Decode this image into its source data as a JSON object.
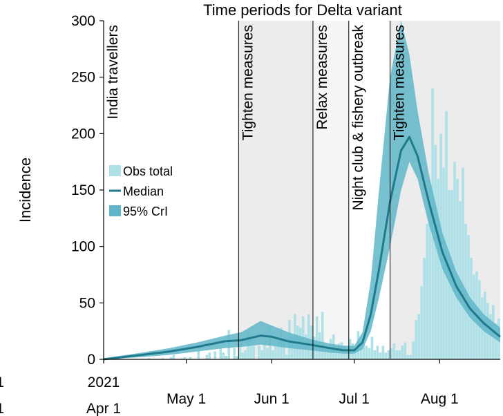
{
  "chart_data": {
    "type": "bar",
    "title": "Time periods for Delta variant",
    "xlabel": "",
    "ylabel": "Incidence",
    "ylim": [
      0,
      300
    ],
    "yticks": [
      "0",
      "50",
      "100",
      "150",
      "200",
      "250",
      "300"
    ],
    "x_tick_labels": [
      {
        "date": "2021-04-01",
        "lines": [
          "2021",
          "Apr 1"
        ]
      },
      {
        "date": "2021-05-01",
        "lines": [
          "May 1"
        ]
      },
      {
        "date": "2021-06-01",
        "lines": [
          "Jun 1"
        ]
      },
      {
        "date": "2021-07-01",
        "lines": [
          "Jul 1"
        ]
      },
      {
        "date": "2021-08-01",
        "lines": [
          "Aug 1"
        ]
      }
    ],
    "left_cutoff_labels": [
      "1",
      "1"
    ],
    "xlim": [
      "2021-04-01",
      "2021-08-23"
    ],
    "periods": [
      {
        "label": "India travellers",
        "start": "2021-04-01",
        "end": "2021-05-20",
        "shade": "#ffffff"
      },
      {
        "label": "Tighten measures",
        "start": "2021-05-20",
        "end": "2021-06-16",
        "shade": "#ececec"
      },
      {
        "label": "Relax measures",
        "start": "2021-06-16",
        "end": "2021-06-29",
        "shade": "#f5f5f5"
      },
      {
        "label": "Night club & fishery outbreak",
        "start": "2021-06-29",
        "end": "2021-07-14",
        "shade": "#ffffff"
      },
      {
        "label": "Tighten measures",
        "start": "2021-07-14",
        "end": "2021-08-23",
        "shade": "#ececec"
      }
    ],
    "legend": {
      "placement": "left-middle",
      "entries": [
        {
          "label": "Obs total",
          "style": "bar",
          "color": "#aee0e7"
        },
        {
          "label": "Median",
          "style": "line",
          "color": "#1f7a8c"
        },
        {
          "label": "95% CrI",
          "style": "band",
          "color": "#5fb6c8"
        }
      ]
    },
    "colors": {
      "bars": "#aee0e7",
      "median": "#1f7a8c",
      "band": "#5fb6c8"
    },
    "series": [
      {
        "name": "Obs total",
        "kind": "daily_bars",
        "start_date": "2021-04-01",
        "values": [
          0,
          0,
          0,
          0,
          0,
          1,
          0,
          0,
          0,
          0,
          0,
          0,
          0,
          0,
          0,
          0,
          1,
          0,
          0,
          0,
          0,
          1,
          0,
          0,
          2,
          4,
          0,
          0,
          1,
          2,
          0,
          2,
          0,
          0,
          8,
          0,
          0,
          4,
          6,
          0,
          7,
          0,
          10,
          6,
          3,
          26,
          0,
          10,
          3,
          14,
          6,
          8,
          25,
          18,
          12,
          0,
          12,
          8,
          16,
          10,
          28,
          8,
          12,
          20,
          28,
          18,
          4,
          35,
          20,
          40,
          30,
          28,
          38,
          22,
          40,
          30,
          20,
          38,
          24,
          42,
          12,
          10,
          18,
          22,
          8,
          14,
          15,
          12,
          8,
          18,
          14,
          10,
          25,
          10,
          14,
          12,
          10,
          20,
          8,
          12,
          6,
          12,
          6,
          8,
          10,
          14,
          8,
          8,
          12,
          15,
          4,
          4,
          16,
          35,
          40,
          65,
          90,
          120,
          155,
          240,
          190,
          160,
          200,
          170,
          220,
          150,
          150,
          175,
          160,
          140,
          170,
          120,
          110,
          90,
          75,
          78,
          70,
          55,
          60,
          50,
          40,
          48,
          32,
          36,
          20
        ]
      },
      {
        "name": "Median",
        "kind": "line",
        "points": [
          {
            "date": "2021-04-01",
            "value": 0
          },
          {
            "date": "2021-04-15",
            "value": 4
          },
          {
            "date": "2021-04-25",
            "value": 7
          },
          {
            "date": "2021-05-05",
            "value": 11
          },
          {
            "date": "2021-05-15",
            "value": 16
          },
          {
            "date": "2021-05-21",
            "value": 17
          },
          {
            "date": "2021-05-28",
            "value": 21
          },
          {
            "date": "2021-06-01",
            "value": 20
          },
          {
            "date": "2021-06-07",
            "value": 16
          },
          {
            "date": "2021-06-15",
            "value": 13
          },
          {
            "date": "2021-06-22",
            "value": 10
          },
          {
            "date": "2021-06-27",
            "value": 8
          },
          {
            "date": "2021-07-01",
            "value": 8
          },
          {
            "date": "2021-07-04",
            "value": 15
          },
          {
            "date": "2021-07-07",
            "value": 40
          },
          {
            "date": "2021-07-10",
            "value": 80
          },
          {
            "date": "2021-07-14",
            "value": 140
          },
          {
            "date": "2021-07-18",
            "value": 185
          },
          {
            "date": "2021-07-21",
            "value": 197
          },
          {
            "date": "2021-07-24",
            "value": 180
          },
          {
            "date": "2021-07-28",
            "value": 140
          },
          {
            "date": "2021-08-02",
            "value": 95
          },
          {
            "date": "2021-08-07",
            "value": 65
          },
          {
            "date": "2021-08-12",
            "value": 45
          },
          {
            "date": "2021-08-17",
            "value": 32
          },
          {
            "date": "2021-08-23",
            "value": 20
          }
        ]
      },
      {
        "name": "95% CrI",
        "kind": "band",
        "points": [
          {
            "date": "2021-04-01",
            "lower": 0,
            "upper": 1
          },
          {
            "date": "2021-04-15",
            "lower": 2,
            "upper": 6
          },
          {
            "date": "2021-04-25",
            "lower": 4,
            "upper": 10
          },
          {
            "date": "2021-05-05",
            "lower": 7,
            "upper": 15
          },
          {
            "date": "2021-05-15",
            "lower": 10,
            "upper": 21
          },
          {
            "date": "2021-05-21",
            "lower": 11,
            "upper": 24
          },
          {
            "date": "2021-05-28",
            "lower": 13,
            "upper": 34
          },
          {
            "date": "2021-06-01",
            "lower": 12,
            "upper": 30
          },
          {
            "date": "2021-06-07",
            "lower": 10,
            "upper": 24
          },
          {
            "date": "2021-06-15",
            "lower": 8,
            "upper": 18
          },
          {
            "date": "2021-06-22",
            "lower": 6,
            "upper": 14
          },
          {
            "date": "2021-06-27",
            "lower": 5,
            "upper": 12
          },
          {
            "date": "2021-07-01",
            "lower": 5,
            "upper": 12
          },
          {
            "date": "2021-07-04",
            "lower": 9,
            "upper": 24
          },
          {
            "date": "2021-07-07",
            "lower": 25,
            "upper": 70
          },
          {
            "date": "2021-07-10",
            "lower": 55,
            "upper": 150
          },
          {
            "date": "2021-07-14",
            "lower": 100,
            "upper": 250
          },
          {
            "date": "2021-07-18",
            "lower": 150,
            "upper": 300
          },
          {
            "date": "2021-07-21",
            "lower": 175,
            "upper": 270
          },
          {
            "date": "2021-07-24",
            "lower": 160,
            "upper": 220
          },
          {
            "date": "2021-07-28",
            "lower": 120,
            "upper": 165
          },
          {
            "date": "2021-08-02",
            "lower": 80,
            "upper": 112
          },
          {
            "date": "2021-08-07",
            "lower": 55,
            "upper": 78
          },
          {
            "date": "2021-08-12",
            "lower": 37,
            "upper": 55
          },
          {
            "date": "2021-08-17",
            "lower": 25,
            "upper": 40
          },
          {
            "date": "2021-08-23",
            "lower": 15,
            "upper": 28
          }
        ]
      }
    ]
  }
}
